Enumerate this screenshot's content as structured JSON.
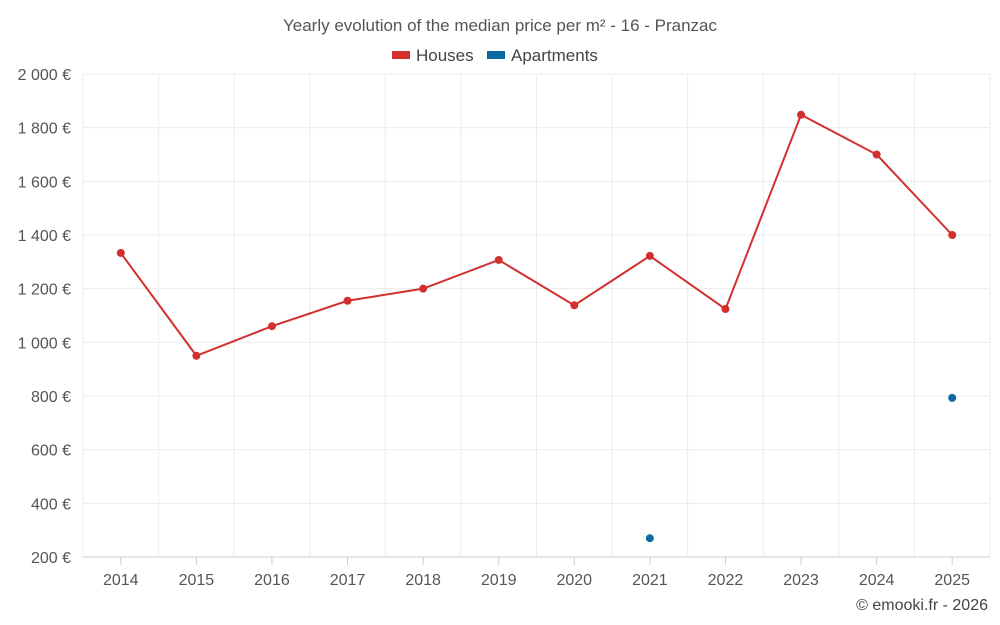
{
  "chart_data": {
    "type": "line",
    "title": "Yearly evolution of the median price per m² - 16 - Pranzac",
    "categories": [
      "2014",
      "2015",
      "2016",
      "2017",
      "2018",
      "2019",
      "2020",
      "2021",
      "2022",
      "2023",
      "2024",
      "2025"
    ],
    "series": [
      {
        "name": "Houses",
        "color": "#d32f2f",
        "values": [
          1333,
          950,
          1060,
          1155,
          1200,
          1307,
          1138,
          1322,
          1124,
          1848,
          1700,
          1400
        ]
      },
      {
        "name": "Apartments",
        "color": "#0b6aa2",
        "values": [
          null,
          null,
          null,
          null,
          null,
          null,
          null,
          270,
          null,
          null,
          null,
          793
        ]
      }
    ],
    "ylim": [
      200,
      2000
    ],
    "yticks": [
      200,
      400,
      600,
      800,
      1000,
      1200,
      1400,
      1600,
      1800,
      2000
    ],
    "ytick_labels": [
      "200 €",
      "400 €",
      "600 €",
      "800 €",
      "1 000 €",
      "1 200 €",
      "1 400 €",
      "1 600 €",
      "1 800 €",
      "2 000 €"
    ],
    "xlabel": "",
    "ylabel": "",
    "grid": true,
    "legend_position": "top-center"
  },
  "credit": "© emooki.fr - 2026"
}
